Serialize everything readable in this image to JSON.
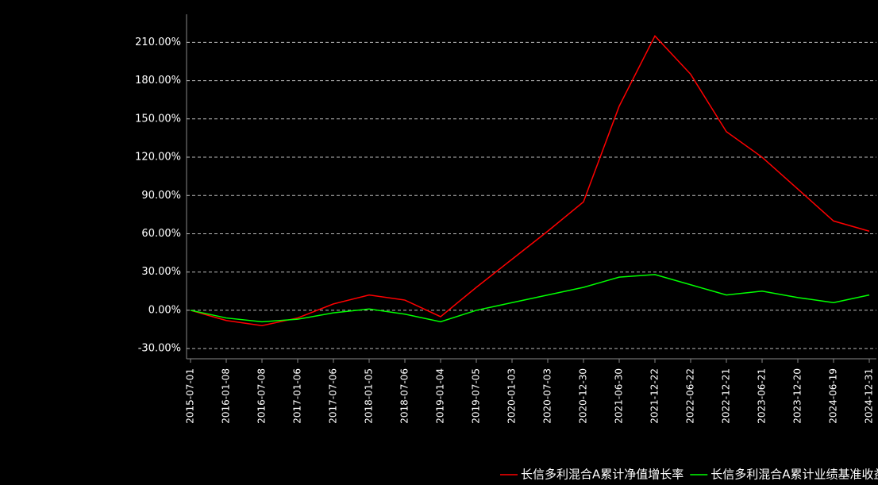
{
  "chart_data": {
    "type": "line",
    "categories": [
      "2015-07-01",
      "2016-01-08",
      "2016-07-08",
      "2017-01-06",
      "2017-07-06",
      "2018-01-05",
      "2018-07-06",
      "2019-01-04",
      "2019-07-05",
      "2020-01-03",
      "2020-07-03",
      "2020-12-30",
      "2021-06-30",
      "2021-12-22",
      "2022-06-22",
      "2022-12-21",
      "2023-06-21",
      "2023-12-20",
      "2024-06-19",
      "2024-12-31"
    ],
    "series": [
      {
        "name": "长信多利混合A累计净值增长率",
        "color": "#ff0000",
        "values": [
          0,
          -8,
          -12,
          -6,
          5,
          12,
          8,
          -5,
          18,
          40,
          62,
          85,
          160,
          215,
          185,
          140,
          120,
          95,
          70,
          62
        ]
      },
      {
        "name": "长信多利混合A累计业绩基准收益率",
        "color": "#00ff00",
        "values": [
          0,
          -6,
          -9,
          -7,
          -2,
          1,
          -3,
          -9,
          0,
          6,
          12,
          18,
          26,
          28,
          20,
          12,
          15,
          10,
          6,
          12
        ]
      }
    ],
    "ylim": [
      -38,
      232
    ],
    "yticks": [
      {
        "value": -30,
        "label": "-30.00%"
      },
      {
        "value": 0,
        "label": "0.00%"
      },
      {
        "value": 30,
        "label": "30.00%"
      },
      {
        "value": 60,
        "label": "60.00%"
      },
      {
        "value": 90,
        "label": "90.00%"
      },
      {
        "value": 120,
        "label": "120.00%"
      },
      {
        "value": 150,
        "label": "150.00%"
      },
      {
        "value": 180,
        "label": "180.00%"
      },
      {
        "value": 210,
        "label": "210.00%"
      }
    ],
    "grid": true
  }
}
